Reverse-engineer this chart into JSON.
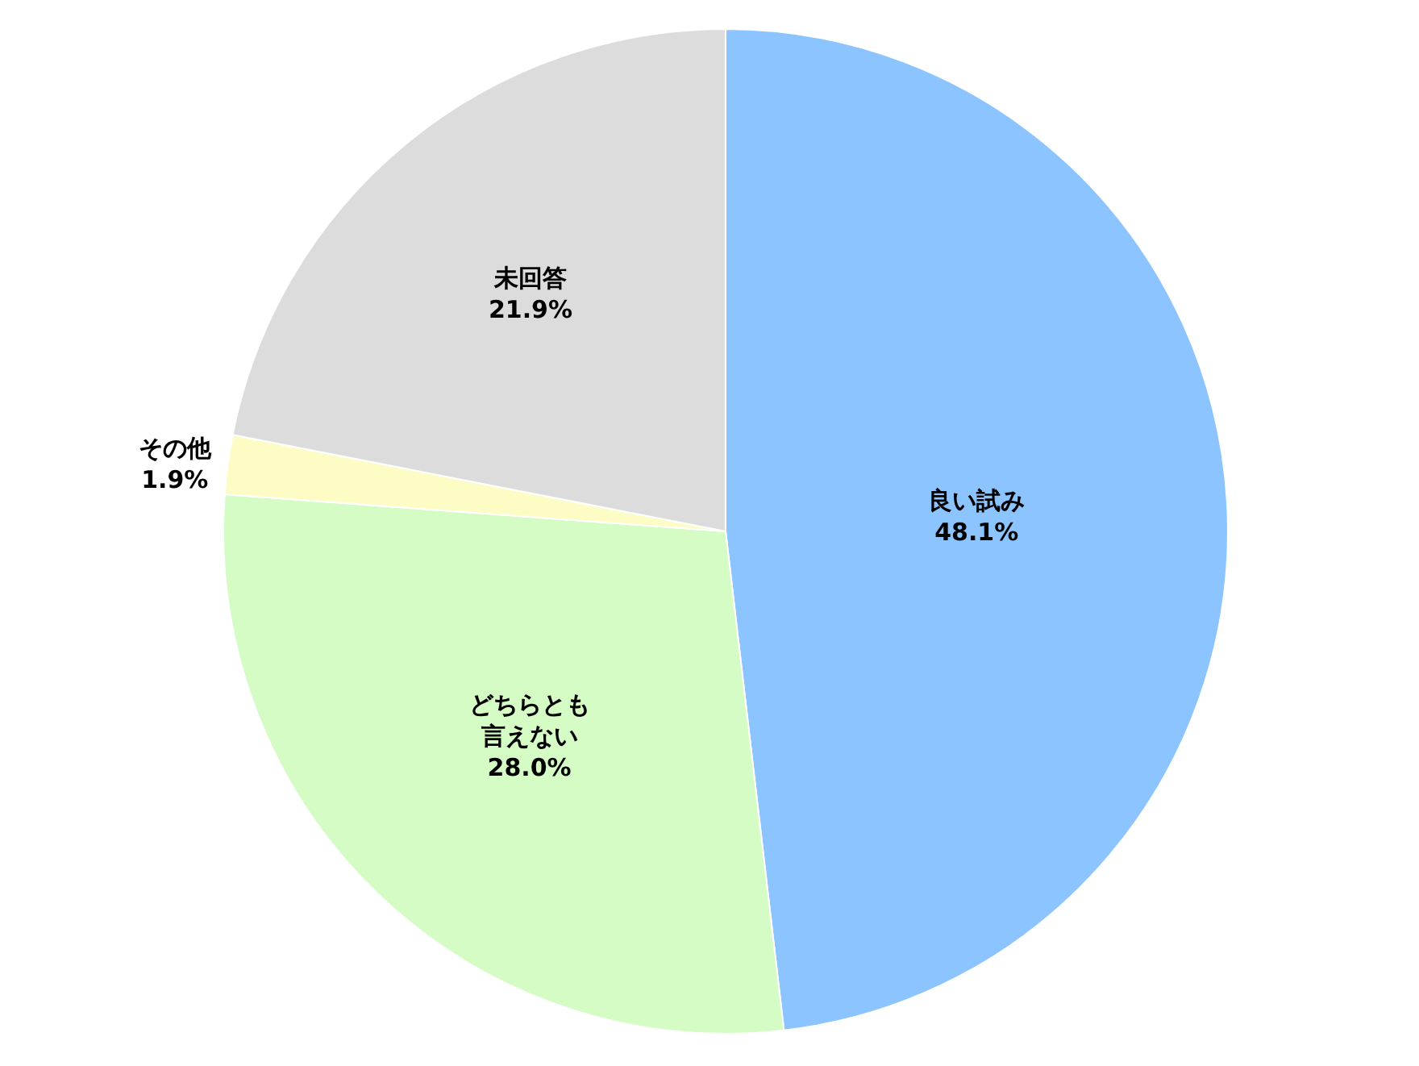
{
  "chart_data": {
    "type": "pie",
    "categories": [
      "良い試み",
      "どちらとも言えない",
      "その他",
      "未回答"
    ],
    "values": [
      48.1,
      28.0,
      1.9,
      21.9
    ],
    "value_labels": [
      "48.1%",
      "28.0%",
      "1.9%",
      "21.9%"
    ],
    "colors": [
      "#8cc4ff",
      "#d4fcc4",
      "#fcfcc4",
      "#dcdcdc"
    ],
    "legend": false
  }
}
